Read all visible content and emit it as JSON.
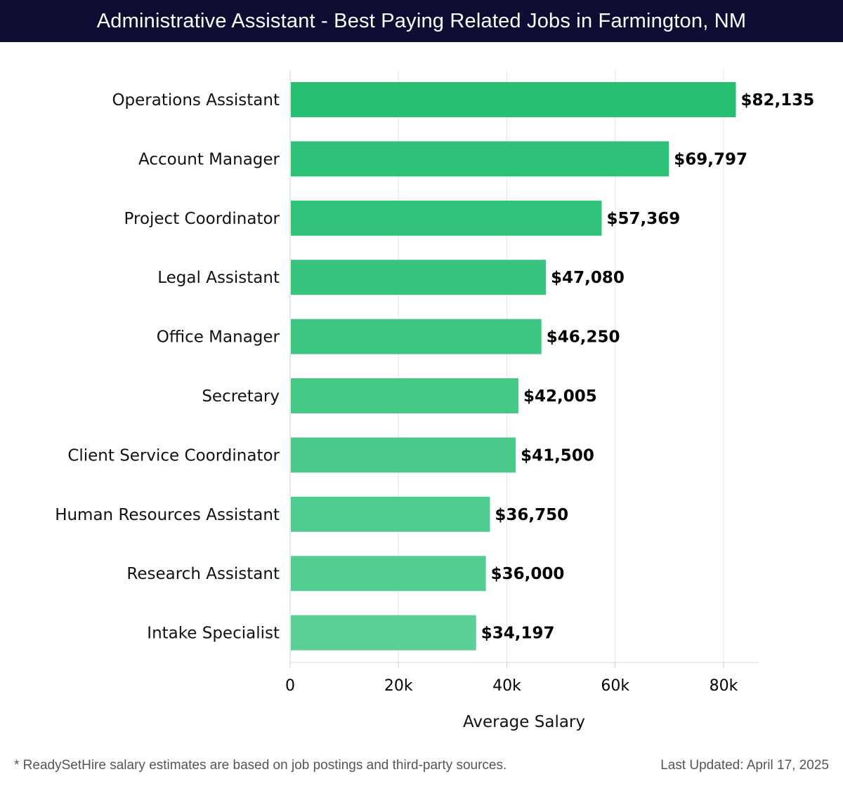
{
  "header": {
    "title": "Administrative Assistant - Best Paying Related Jobs in Farmington, NM"
  },
  "chart_data": {
    "type": "bar",
    "orientation": "horizontal",
    "categories": [
      "Operations Assistant",
      "Account Manager",
      "Project Coordinator",
      "Legal Assistant",
      "Office Manager",
      "Secretary",
      "Client Service Coordinator",
      "Human Resources Assistant",
      "Research Assistant",
      "Intake Specialist"
    ],
    "values": [
      82135,
      69797,
      57369,
      47080,
      46250,
      42005,
      41500,
      36750,
      36000,
      34197
    ],
    "value_labels": [
      "$82,135",
      "$69,797",
      "$57,369",
      "$47,080",
      "$46,250",
      "$42,005",
      "$41,500",
      "$36,750",
      "$36,000",
      "$34,197"
    ],
    "xlabel": "Average Salary",
    "ylabel": "",
    "xlim": [
      0,
      86000
    ],
    "xticks": [
      0,
      20000,
      40000,
      60000,
      80000
    ],
    "xtick_labels": [
      "0",
      "20k",
      "40k",
      "60k",
      "80k"
    ],
    "grid": "vertical",
    "colors": {
      "bar_top": "#26bf72",
      "bar_bottom": "#5acf96",
      "grid": "#e6e6e6",
      "label_text": "#000000"
    }
  },
  "footer": {
    "note": "* ReadySetHire salary estimates are based on job postings and third-party sources.",
    "updated": "Last Updated: April 17, 2025"
  }
}
